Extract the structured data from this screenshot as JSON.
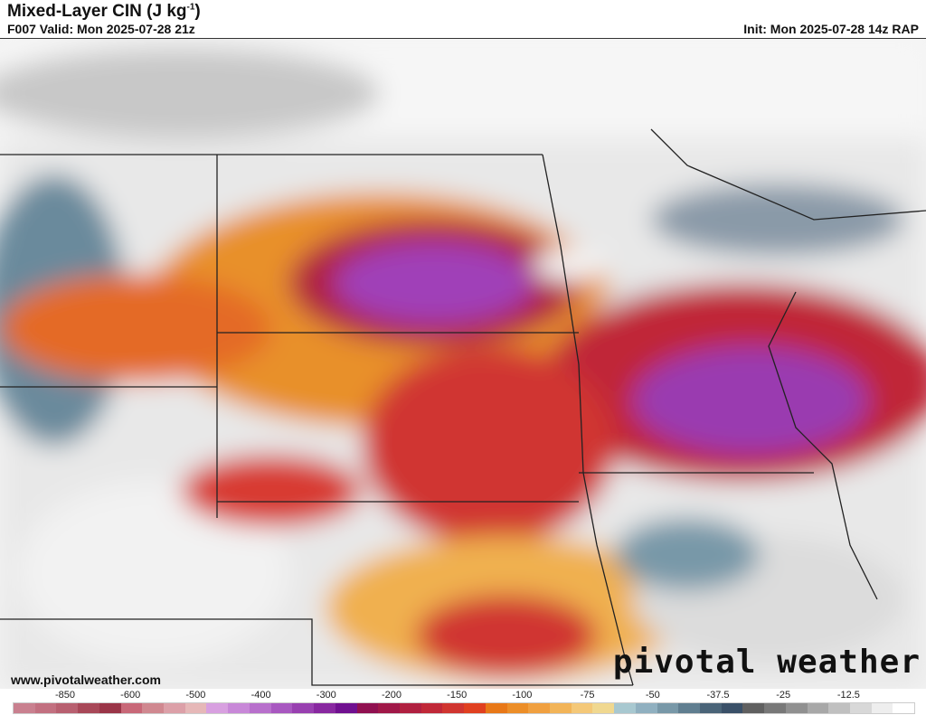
{
  "header": {
    "title": "Mixed-Layer CIN (J kg",
    "title_sup": "-1",
    "title_close": ")",
    "valid": "F007 Valid: Mon 2025-07-28 21z",
    "init": "Init: Mon 2025-07-28 14z RAP"
  },
  "footer": {
    "url": "www.pivotalweather.com",
    "brand": "pivotal weather"
  },
  "colorbar": {
    "labels": [
      "-850",
      "-600",
      "-500",
      "-400",
      "-300",
      "-200",
      "-150",
      "-100",
      "-75",
      "-50",
      "-37.5",
      "-25",
      "-12.5"
    ],
    "colors": [
      "#c9808f",
      "#c27080",
      "#b86070",
      "#a84858",
      "#9a3548",
      "#c86878",
      "#d08890",
      "#dca0a8",
      "#e6b8b8",
      "#d8a0e0",
      "#c888d8",
      "#b870cc",
      "#a858c0",
      "#9840b0",
      "#8828a0",
      "#701090",
      "#901050",
      "#a01848",
      "#b02040",
      "#c02838",
      "#d03530",
      "#e04020",
      "#e87818",
      "#ec8e28",
      "#f0a040",
      "#f2b458",
      "#f4c878",
      "#f0d890",
      "#a8c8d0",
      "#90b0c0",
      "#7898a8",
      "#607e90",
      "#4a6478",
      "#3a5068",
      "#606060",
      "#787878",
      "#909090",
      "#a8a8a8",
      "#c0c0c0",
      "#d8d8d8",
      "#eeeeee",
      "#ffffff"
    ]
  }
}
